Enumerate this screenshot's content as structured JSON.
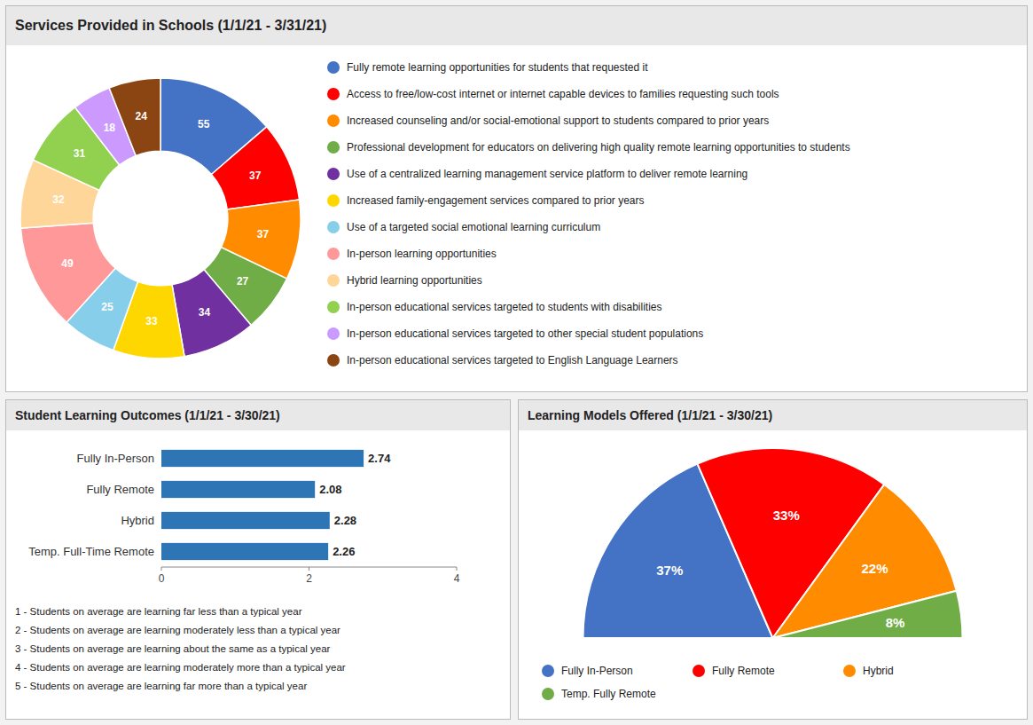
{
  "chart_data": [
    {
      "type": "donut",
      "title": "Services Provided in Schools (1/1/21 - 3/31/21)",
      "categories": [
        "Fully remote learning opportunities for students that requested it",
        "Access to free/low-cost internet or internet capable devices to families requesting such tools",
        "Increased counseling and/or social-emotional support to students compared to prior years",
        "Professional development for educators on delivering high quality remote learning opportunities to students",
        "Use of a centralized learning management service platform to deliver remote learning",
        "Increased family-engagement services compared to prior years",
        "Use of a targeted social emotional learning curriculum",
        "In-person learning opportunities",
        "Hybrid learning opportunities",
        "In-person educational services targeted to students with disabilities",
        "In-person educational services targeted to other special student populations",
        "In-person educational services targeted to English Language Learners"
      ],
      "values": [
        55,
        37,
        37,
        27,
        34,
        33,
        25,
        49,
        32,
        31,
        18,
        24
      ],
      "colors": [
        "#4472C4",
        "#FF0000",
        "#FF8C00",
        "#70AD47",
        "#7030A0",
        "#FFD700",
        "#87CEEB",
        "#FF9999",
        "#FFD699",
        "#92D050",
        "#CC99FF",
        "#8B4513"
      ],
      "data_labels": true,
      "legend": "right"
    },
    {
      "type": "bar",
      "title": "Student Learning Outcomes (1/1/21 - 3/30/21)",
      "orientation": "horizontal",
      "categories": [
        "Fully In-Person",
        "Fully Remote",
        "Hybrid",
        "Temp. Full-Time Remote"
      ],
      "values": [
        2.74,
        2.08,
        2.28,
        2.26
      ],
      "color": "#2E75B6",
      "xlim": [
        0,
        4
      ],
      "xticks": [
        0,
        2,
        4
      ],
      "data_labels": true,
      "grid": false,
      "annotations": [
        "1 - Students on average are learning far less than a typical year",
        "2 - Students on average are learning moderately less than a typical year",
        "3 - Students on average are learning about the same as a typical year",
        "4 - Students on average are learning moderately more than a typical year",
        "5 - Students on average are learning far more than a typical year"
      ]
    },
    {
      "type": "semicircle",
      "title": "Learning Models Offered (1/1/21 - 3/30/21)",
      "categories": [
        "Fully In-Person",
        "Fully Remote",
        "Hybrid",
        "Temp. Fully Remote"
      ],
      "values": [
        37,
        33,
        22,
        8
      ],
      "value_labels": [
        "37%",
        "33%",
        "22%",
        "8%"
      ],
      "colors": [
        "#4472C4",
        "#FF0000",
        "#FF8C00",
        "#70AD47"
      ],
      "data_labels": true,
      "legend": "bottom"
    }
  ]
}
